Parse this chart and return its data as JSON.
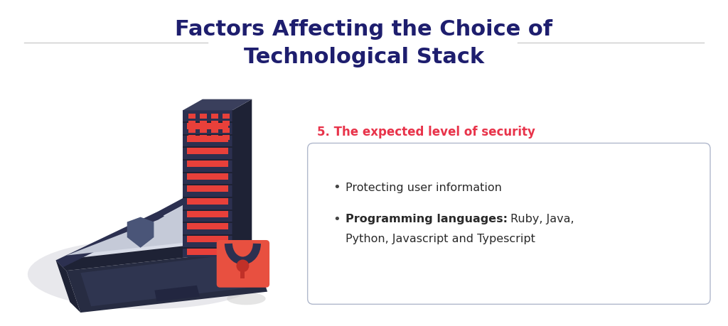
{
  "title_line1": "Factors Affecting the Choice of",
  "title_line2": "Technological Stack",
  "title_color": "#1e1e6e",
  "title_fontsize": 22,
  "subtitle_color": "#e8334a",
  "subtitle_text": "5. The expected level of security",
  "subtitle_fontsize": 12,
  "bullet1_text": "Protecting user information",
  "bullet2_bold": "Programming languages: ",
  "bullet2_rest": "Ruby, Java,",
  "bullet2_line2": "Python, Javascript and Typescript",
  "bullet_fontsize": 11.5,
  "box_edge_color": "#b0b8cc",
  "background_color": "#ffffff",
  "line_color": "#cccccc",
  "text_dark": "#2a2a2a"
}
